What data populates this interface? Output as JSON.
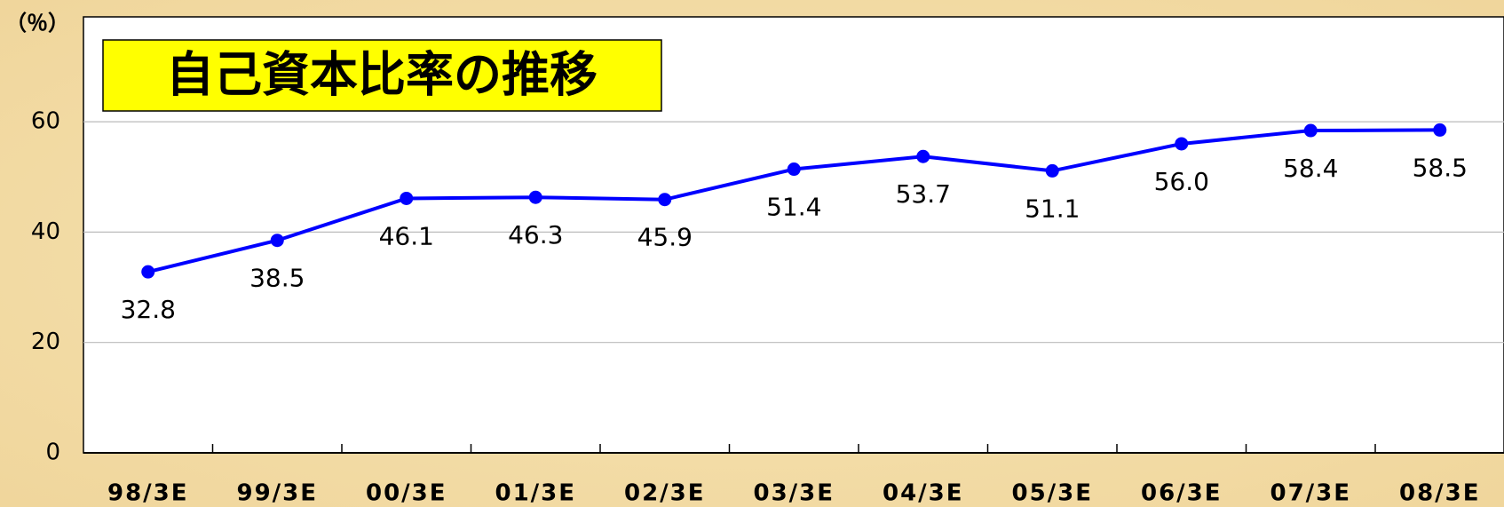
{
  "chart_data": {
    "type": "line",
    "title": "自己資本比率の推移",
    "y_label": "（％）",
    "categories": [
      "98/3E",
      "99/3E",
      "00/3E",
      "01/3E",
      "02/3E",
      "03/3E",
      "04/3E",
      "05/3E",
      "06/3E",
      "07/3E",
      "08/3E"
    ],
    "values": [
      32.8,
      38.5,
      46.1,
      46.3,
      45.9,
      51.4,
      53.7,
      51.1,
      56.0,
      58.4,
      58.5
    ],
    "value_labels": [
      "32.8",
      "38.5",
      "46.1",
      "46.3",
      "45.9",
      "51.4",
      "53.7",
      "51.1",
      "56.0",
      "58.4",
      "58.5"
    ],
    "color": "#0000ff",
    "ylim": [
      0,
      79
    ],
    "yticks": [
      0,
      20,
      40,
      60
    ],
    "grid": true
  }
}
